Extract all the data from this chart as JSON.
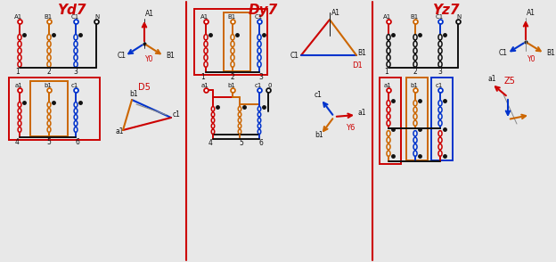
{
  "titles": [
    "Yd7",
    "Dy7",
    "Yz7"
  ],
  "title_color": "#cc0000",
  "bg_color": "#e8e8e8",
  "divider_color": "#cc0000",
  "RED": "#cc0000",
  "ORANGE": "#cc6600",
  "BLUE": "#0033cc",
  "BLACK": "#111111",
  "GRAY": "#888888"
}
